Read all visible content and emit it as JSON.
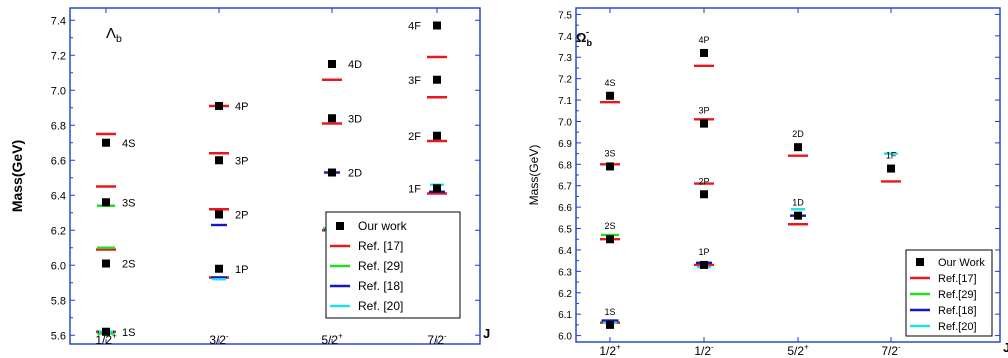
{
  "chart_data": [
    {
      "type": "scatter",
      "title": "Λb",
      "xlabel": "J",
      "ylabel": "Mass(GeV)",
      "ylim": [
        5.55,
        7.47
      ],
      "yticks": [
        "5.6",
        "5.8",
        "6.0",
        "6.2",
        "6.4",
        "6.6",
        "6.8",
        "7.0",
        "7.2",
        "7.4"
      ],
      "categories": [
        "1/2+",
        "3/2-",
        "5/2+",
        "7/2-"
      ],
      "category_labels": [
        {
          "base": "1/2",
          "sup": "+"
        },
        {
          "base": "3/2",
          "sup": "-"
        },
        {
          "base": "5/2",
          "sup": "+"
        },
        {
          "base": "7/2",
          "sup": "-"
        }
      ],
      "legend_position": "bottom-right",
      "series": [
        {
          "name": "Our work",
          "marker": "square",
          "color": "#000000",
          "points": [
            {
              "x": "1/2+",
              "y": 5.62,
              "label": "1S"
            },
            {
              "x": "1/2+",
              "y": 6.01,
              "label": "2S"
            },
            {
              "x": "1/2+",
              "y": 6.36,
              "label": "3S"
            },
            {
              "x": "1/2+",
              "y": 6.7,
              "label": "4S"
            },
            {
              "x": "3/2-",
              "y": 5.98,
              "label": "1P"
            },
            {
              "x": "3/2-",
              "y": 6.29,
              "label": "2P"
            },
            {
              "x": "3/2-",
              "y": 6.6,
              "label": "3P"
            },
            {
              "x": "3/2-",
              "y": 6.91,
              "label": "4P"
            },
            {
              "x": "5/2+",
              "y": 6.22,
              "label": "1D"
            },
            {
              "x": "5/2+",
              "y": 6.53,
              "label": "2D"
            },
            {
              "x": "5/2+",
              "y": 6.84,
              "label": "3D"
            },
            {
              "x": "5/2+",
              "y": 7.15,
              "label": "4D"
            },
            {
              "x": "7/2-",
              "y": 6.44,
              "label": "1F"
            },
            {
              "x": "7/2-",
              "y": 6.74,
              "label": "2F"
            },
            {
              "x": "7/2-",
              "y": 7.06,
              "label": "3F"
            },
            {
              "x": "7/2-",
              "y": 7.37,
              "label": "4F"
            }
          ]
        },
        {
          "name": "Ref. [17]",
          "marker": "dash",
          "color": "#e8191c",
          "points": [
            {
              "x": "1/2+",
              "y": 5.62
            },
            {
              "x": "1/2+",
              "y": 6.09
            },
            {
              "x": "1/2+",
              "y": 6.45
            },
            {
              "x": "1/2+",
              "y": 6.75
            },
            {
              "x": "3/2-",
              "y": 5.93
            },
            {
              "x": "3/2-",
              "y": 6.32
            },
            {
              "x": "3/2-",
              "y": 6.64
            },
            {
              "x": "3/2-",
              "y": 6.91
            },
            {
              "x": "5/2+",
              "y": 6.2
            },
            {
              "x": "5/2+",
              "y": 6.81
            },
            {
              "x": "5/2+",
              "y": 7.06
            },
            {
              "x": "7/2-",
              "y": 6.41
            },
            {
              "x": "7/2-",
              "y": 6.71
            },
            {
              "x": "7/2-",
              "y": 6.96
            },
            {
              "x": "7/2-",
              "y": 7.19
            }
          ]
        },
        {
          "name": "Ref. [29]",
          "marker": "dash",
          "color": "#22dd22",
          "points": [
            {
              "x": "1/2+",
              "y": 5.61
            },
            {
              "x": "1/2+",
              "y": 6.1
            },
            {
              "x": "1/2+",
              "y": 6.34
            },
            {
              "x": "5/2+",
              "y": 6.21
            }
          ]
        },
        {
          "name": "Ref. [18]",
          "marker": "dash",
          "color": "#1515c8",
          "points": [
            {
              "x": "1/2+",
              "y": 5.62
            },
            {
              "x": "3/2-",
              "y": 5.93
            },
            {
              "x": "3/2-",
              "y": 6.23
            },
            {
              "x": "5/2+",
              "y": 6.2
            },
            {
              "x": "5/2+",
              "y": 6.53
            },
            {
              "x": "7/2-",
              "y": 6.42
            }
          ]
        },
        {
          "name": "Ref. [20]",
          "marker": "dash",
          "color": "#22e0e8",
          "points": [
            {
              "x": "1/2+",
              "y": 5.62
            },
            {
              "x": "3/2-",
              "y": 5.92
            },
            {
              "x": "5/2+",
              "y": 6.2
            },
            {
              "x": "7/2-",
              "y": 6.46
            }
          ]
        }
      ]
    },
    {
      "type": "scatter",
      "title": "Ωb",
      "title_sup": "-",
      "xlabel": "J",
      "ylabel": "Mass(GeV)",
      "ylim": [
        5.97,
        7.53
      ],
      "yticks": [
        "6.0",
        "6.1",
        "6.2",
        "6.3",
        "6.4",
        "6.5",
        "6.6",
        "6.7",
        "6.8",
        "6.9",
        "7.0",
        "7.1",
        "7.2",
        "7.3",
        "7.4",
        "7.5"
      ],
      "categories": [
        "1/2+",
        "1/2-",
        "5/2+",
        "7/2-"
      ],
      "category_labels": [
        {
          "base": "1/2",
          "sup": "+"
        },
        {
          "base": "1/2",
          "sup": "-"
        },
        {
          "base": "5/2",
          "sup": "+"
        },
        {
          "base": "7/2",
          "sup": "-"
        }
      ],
      "legend_position": "bottom-right",
      "series": [
        {
          "name": "Our Work",
          "marker": "square",
          "color": "#000000",
          "points": [
            {
              "x": "1/2+",
              "y": 6.05,
              "label": "1S"
            },
            {
              "x": "1/2+",
              "y": 6.45,
              "label": "2S"
            },
            {
              "x": "1/2+",
              "y": 6.79,
              "label": "3S"
            },
            {
              "x": "1/2+",
              "y": 7.12,
              "label": "4S"
            },
            {
              "x": "1/2-",
              "y": 6.33,
              "label": "1P"
            },
            {
              "x": "1/2-",
              "y": 6.66,
              "label": "2P"
            },
            {
              "x": "1/2-",
              "y": 6.99,
              "label": "3P"
            },
            {
              "x": "1/2-",
              "y": 7.32,
              "label": "4P"
            },
            {
              "x": "5/2+",
              "y": 6.56,
              "label": "1D"
            },
            {
              "x": "5/2+",
              "y": 6.88,
              "label": "2D"
            },
            {
              "x": "7/2-",
              "y": 6.78,
              "label": "1F"
            }
          ]
        },
        {
          "name": "Ref.[17]",
          "marker": "dash",
          "color": "#e8191c",
          "points": [
            {
              "x": "1/2+",
              "y": 6.06
            },
            {
              "x": "1/2+",
              "y": 6.45
            },
            {
              "x": "1/2+",
              "y": 6.8
            },
            {
              "x": "1/2+",
              "y": 7.09
            },
            {
              "x": "1/2-",
              "y": 6.33
            },
            {
              "x": "1/2-",
              "y": 6.71
            },
            {
              "x": "1/2-",
              "y": 7.01
            },
            {
              "x": "1/2-",
              "y": 7.26
            },
            {
              "x": "5/2+",
              "y": 6.52
            },
            {
              "x": "5/2+",
              "y": 6.84
            },
            {
              "x": "7/2-",
              "y": 6.72
            }
          ]
        },
        {
          "name": "Ref.[29]",
          "marker": "dash",
          "color": "#22dd22",
          "points": [
            {
              "x": "1/2+",
              "y": 6.07
            },
            {
              "x": "1/2+",
              "y": 6.47
            }
          ]
        },
        {
          "name": "Ref.[18]",
          "marker": "dash",
          "color": "#1515c8",
          "points": [
            {
              "x": "1/2+",
              "y": 6.07
            },
            {
              "x": "1/2-",
              "y": 6.34
            },
            {
              "x": "5/2+",
              "y": 6.56
            }
          ]
        },
        {
          "name": "Ref.[20]",
          "marker": "dash",
          "color": "#22e0e8",
          "points": [
            {
              "x": "1/2+",
              "y": 6.06
            },
            {
              "x": "1/2-",
              "y": 6.32
            },
            {
              "x": "5/2+",
              "y": 6.59
            },
            {
              "x": "7/2-",
              "y": 6.85
            }
          ]
        }
      ]
    }
  ]
}
